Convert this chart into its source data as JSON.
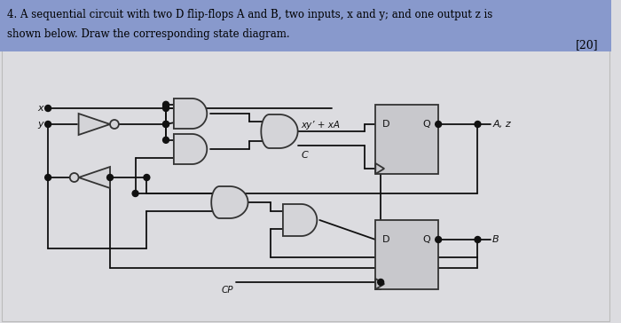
{
  "bg_color": "#dcdce0",
  "title_bg_color": "#8899cc",
  "title_text_line1": "4. A sequential circuit with two D flip-flops A and B, two inputs, x and y; and one output z is",
  "title_text_line2": "shown below. Draw the corresponding state diagram.",
  "score_text": "[20]",
  "label_x": "x",
  "label_y": "y",
  "label_xy": "xy’ + xA",
  "label_c": "C",
  "label_Az": "A, z",
  "label_B": "B",
  "label_CP": "CP",
  "label_D": "D",
  "label_Q": "Q",
  "wire_color": "#111111",
  "gate_fill": "#d4d4d8",
  "gate_edge": "#333333",
  "ff_fill": "#c8c8cc",
  "ff_edge": "#333333",
  "lw": 1.3
}
